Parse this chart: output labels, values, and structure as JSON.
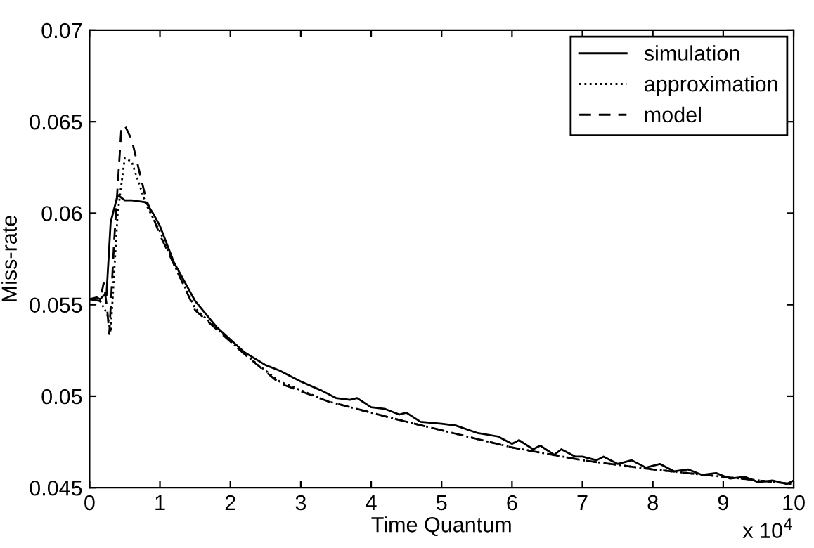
{
  "chart_data": {
    "type": "line",
    "xlabel": "Time Quantum",
    "ylabel": "Miss-rate",
    "annotations": [
      "x 10$^{4}$"
    ],
    "xlim": [
      0,
      10
    ],
    "ylim": [
      0.045,
      0.07
    ],
    "xticks": [
      0,
      1,
      2,
      3,
      4,
      5,
      6,
      7,
      8,
      9,
      10
    ],
    "yticks": [
      0.045,
      0.05,
      0.055,
      0.06,
      0.065,
      0.07
    ],
    "legend": "top right",
    "grid": false,
    "marker": "none",
    "series": [
      {
        "name": "simulation",
        "color": "#000000",
        "line_style": "solid",
        "x": [
          0,
          0.1,
          0.15,
          0.2,
          0.24,
          0.3,
          0.4,
          0.5,
          0.6,
          0.8,
          0.9,
          1.0,
          1.2,
          1.5,
          1.8,
          2.2,
          2.5,
          2.7,
          3.0,
          3.3,
          3.5,
          3.7,
          3.8,
          4.0,
          4.2,
          4.4,
          4.5,
          4.7,
          5.0,
          5.2,
          5.5,
          5.8,
          6.0,
          6.1,
          6.3,
          6.4,
          6.6,
          6.7,
          6.9,
          7.0,
          7.2,
          7.3,
          7.5,
          7.7,
          7.9,
          8.1,
          8.3,
          8.5,
          8.7,
          8.9,
          9.1,
          9.3,
          9.5,
          9.7,
          9.9,
          10
        ],
        "values": [
          0.0553,
          0.0554,
          0.0553,
          0.0555,
          0.0555,
          0.0595,
          0.061,
          0.0607,
          0.0607,
          0.0606,
          0.06,
          0.0593,
          0.0573,
          0.0552,
          0.0538,
          0.0524,
          0.0517,
          0.0514,
          0.0508,
          0.0503,
          0.0499,
          0.0498,
          0.0499,
          0.0494,
          0.0493,
          0.049,
          0.0491,
          0.0486,
          0.0485,
          0.0484,
          0.048,
          0.0478,
          0.0474,
          0.0476,
          0.0471,
          0.0473,
          0.0468,
          0.0471,
          0.0467,
          0.0467,
          0.0465,
          0.0467,
          0.0463,
          0.0465,
          0.0461,
          0.0463,
          0.0459,
          0.046,
          0.0457,
          0.0458,
          0.0455,
          0.0456,
          0.0453,
          0.0454,
          0.0452,
          0.0454
        ]
      },
      {
        "name": "approximation",
        "color": "#000000",
        "line_style": "dotted",
        "x": [
          0,
          0.15,
          0.25,
          0.3,
          0.4,
          0.5,
          0.6,
          0.8,
          1.0,
          1.2,
          1.5,
          2.2,
          2.7,
          3.4,
          4.4,
          6.0,
          7.0,
          8.0,
          9.0,
          10
        ],
        "values": [
          0.0553,
          0.0552,
          0.0545,
          0.0535,
          0.06,
          0.063,
          0.0628,
          0.0605,
          0.059,
          0.0572,
          0.0548,
          0.0523,
          0.0508,
          0.0497,
          0.0487,
          0.0472,
          0.0465,
          0.046,
          0.0456,
          0.0452
        ]
      },
      {
        "name": "model",
        "color": "#000000",
        "line_style": "dashed",
        "x": [
          0,
          0.15,
          0.2,
          0.25,
          0.28,
          0.35,
          0.45,
          0.5,
          0.6,
          0.8,
          1.0,
          1.2,
          1.5,
          2.2,
          2.7,
          3.4,
          4.4,
          6.0,
          7.0,
          8.0,
          9.0,
          10
        ],
        "values": [
          0.0553,
          0.0552,
          0.0562,
          0.0548,
          0.0534,
          0.0585,
          0.0645,
          0.0648,
          0.064,
          0.0608,
          0.0588,
          0.0572,
          0.0547,
          0.0523,
          0.0507,
          0.0497,
          0.0487,
          0.0472,
          0.0465,
          0.046,
          0.0456,
          0.0452
        ]
      }
    ]
  }
}
